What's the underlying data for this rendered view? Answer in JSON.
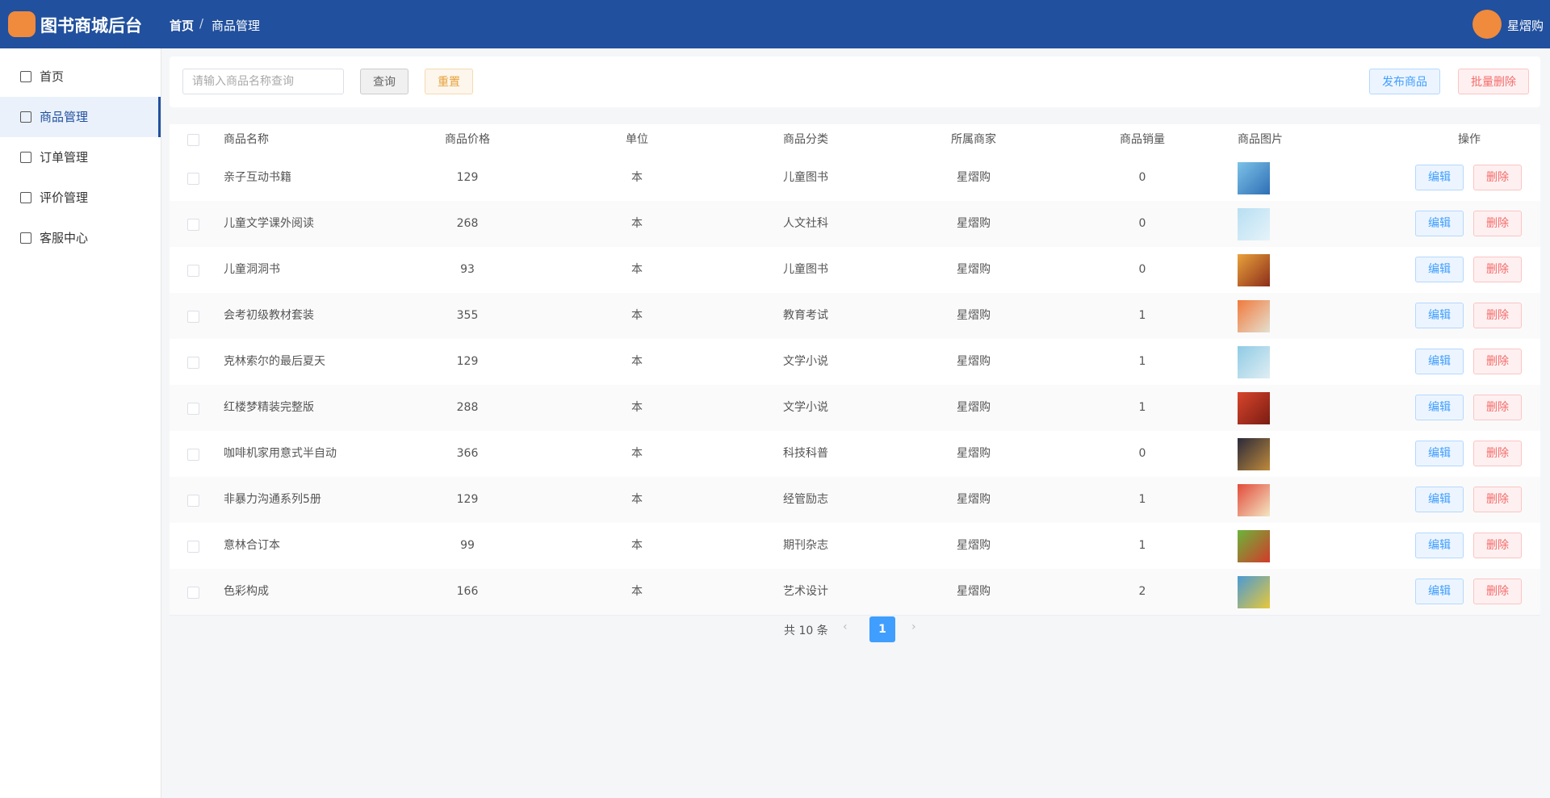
{
  "header": {
    "title": "图书商城后台",
    "breadcrumb": [
      "首页",
      "商品管理"
    ],
    "user": "星熠购"
  },
  "sidebar": {
    "items": [
      "首页",
      "商品管理",
      "订单管理",
      "评价管理",
      "客服中心"
    ],
    "active": 1
  },
  "toolbar": {
    "search_placeholder": "请输入商品名称查询",
    "query": "查询",
    "reset": "重置",
    "publish": "发布商品",
    "batch_delete": "批量删除"
  },
  "table": {
    "columns": [
      "商品名称",
      "商品价格",
      "单位",
      "商品分类",
      "所属商家",
      "商品销量",
      "商品图片",
      "操作"
    ],
    "actions": [
      "编辑",
      "删除"
    ],
    "rows": [
      [
        "亲子互动书籍",
        129,
        "本",
        "儿童图书",
        "星熠购",
        0
      ],
      [
        "儿童文学课外阅读",
        268,
        "本",
        "人文社科",
        "星熠购",
        0
      ],
      [
        "儿童洞洞书",
        93,
        "本",
        "儿童图书",
        "星熠购",
        0
      ],
      [
        "会考初级教材套装",
        355,
        "本",
        "教育考试",
        "星熠购",
        1
      ],
      [
        "克林索尔的最后夏天",
        129,
        "本",
        "文学小说",
        "星熠购",
        1
      ],
      [
        "红楼梦精装完整版",
        288,
        "本",
        "文学小说",
        "星熠购",
        1
      ],
      [
        "咖啡机家用意式半自动",
        366,
        "本",
        "科技科普",
        "星熠购",
        0
      ],
      [
        "非暴力沟通系列5册",
        129,
        "本",
        "经管励志",
        "星熠购",
        1
      ],
      [
        "意林合订本",
        99,
        "本",
        "期刊杂志",
        "星熠购",
        1
      ],
      [
        "色彩构成",
        166,
        "本",
        "艺术设计",
        "星熠购",
        2
      ]
    ]
  },
  "pagination": {
    "total": "共 10 条",
    "current": 1
  }
}
